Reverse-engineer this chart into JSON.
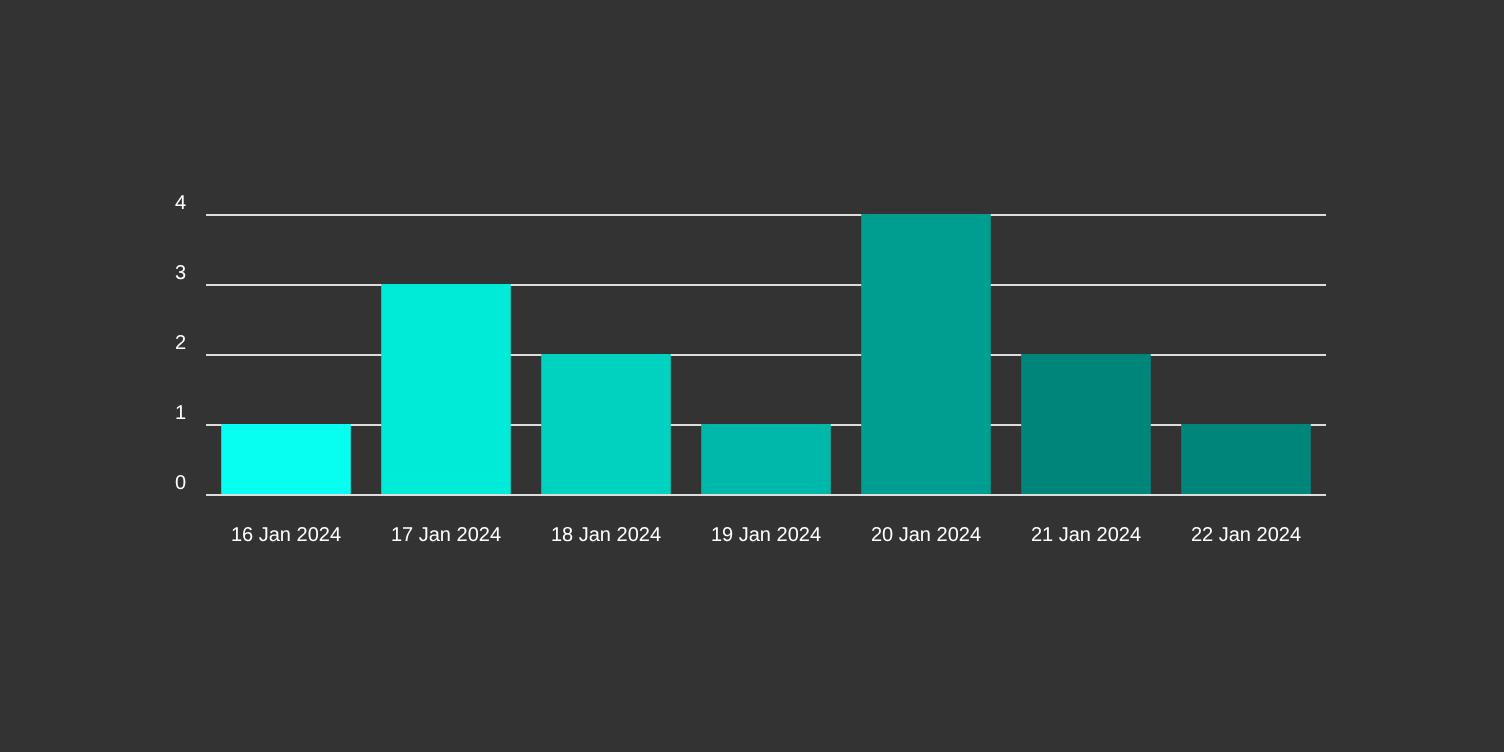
{
  "chart_data": {
    "type": "bar",
    "categories": [
      "16 Jan 2024",
      "17 Jan 2024",
      "18 Jan 2024",
      "19 Jan 2024",
      "20 Jan 2024",
      "21 Jan 2024",
      "22 Jan 2024"
    ],
    "values": [
      1,
      3,
      2,
      1,
      4,
      2,
      1
    ],
    "colors": [
      "#06fff0",
      "#00ead8",
      "#00d2c0",
      "#00b8aa",
      "#009e90",
      "#00857a",
      "#00857a"
    ],
    "ylim": [
      0,
      4
    ],
    "yticks": [
      0,
      1,
      2,
      3,
      4
    ],
    "grid": "y"
  }
}
